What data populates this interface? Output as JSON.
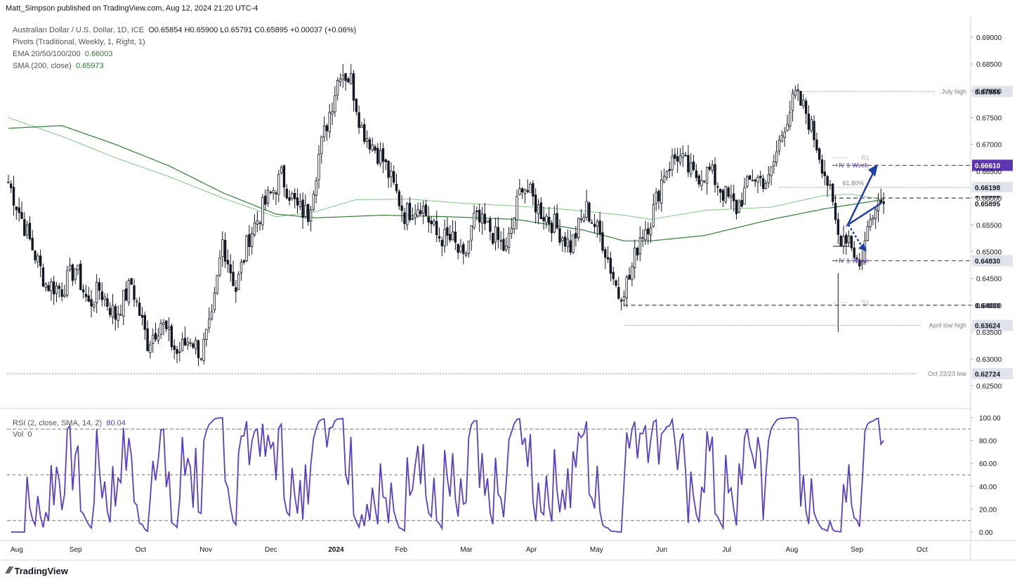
{
  "header": {
    "publisher": "Matt_Simpson published on TradingView.com, Aug 12, 2024 21:20 UTC-4"
  },
  "legend": {
    "symbol": "Australian Dollar / U.S. Dollar, 1D, ICE",
    "ohlc": "O0.65854 H0.65900 L0.65791 C0.65895 +0.00037 (+0.06%)",
    "pivots": "Pivots (Traditional, Weekly, 1, Right, 1)",
    "ema_label": "EMA 20/50/100/200",
    "ema_value": "0.66003",
    "sma_label": "SMA (200, close)",
    "sma_value": "0.65973"
  },
  "rsi_legend": {
    "label": "RSI (2, close, SMA, 14, 2)",
    "value": "80.04",
    "vol_label": "Vol",
    "vol_value": "0"
  },
  "footer": {
    "brand": "TradingView"
  },
  "colors": {
    "ema": "#2e7d32",
    "sma": "#81c784",
    "rsi": "#5b3fc4",
    "arrow": "#1e3fa8",
    "candle": "#131722",
    "pill_purple": "#5e35b1"
  },
  "chart_data": [
    {
      "type": "candlestick",
      "title": "Australian Dollar / U.S. Dollar, 1D, ICE",
      "ylim": [
        0.621,
        0.693
      ],
      "y_ticks": [
        "0.69000",
        "0.68500",
        "0.68000",
        "0.67500",
        "0.67000",
        "0.66500",
        "0.66000",
        "0.65500",
        "0.65000",
        "0.64500",
        "0.64000",
        "0.63500",
        "0.63000",
        "0.62500"
      ],
      "x_ticks": [
        "Aug",
        "Sep",
        "Oct",
        "Nov",
        "Dec",
        "2024",
        "Feb",
        "Mar",
        "Apr",
        "May",
        "Jun",
        "Jul",
        "Aug",
        "Sep",
        "Oct"
      ],
      "close_anchors": [
        [
          0,
          0.663
        ],
        [
          8,
          0.652
        ],
        [
          14,
          0.644
        ],
        [
          20,
          0.643
        ],
        [
          25,
          0.647
        ],
        [
          30,
          0.64
        ],
        [
          34,
          0.643
        ],
        [
          40,
          0.638
        ],
        [
          46,
          0.644
        ],
        [
          52,
          0.633
        ],
        [
          57,
          0.637
        ],
        [
          63,
          0.631
        ],
        [
          68,
          0.634
        ],
        [
          72,
          0.631
        ],
        [
          76,
          0.637
        ],
        [
          80,
          0.652
        ],
        [
          85,
          0.643
        ],
        [
          90,
          0.653
        ],
        [
          96,
          0.659
        ],
        [
          102,
          0.664
        ],
        [
          108,
          0.658
        ],
        [
          112,
          0.657
        ],
        [
          116,
          0.668
        ],
        [
          120,
          0.676
        ],
        [
          124,
          0.684
        ],
        [
          128,
          0.682
        ],
        [
          132,
          0.673
        ],
        [
          136,
          0.67
        ],
        [
          140,
          0.667
        ],
        [
          144,
          0.662
        ],
        [
          148,
          0.657
        ],
        [
          154,
          0.659
        ],
        [
          160,
          0.653
        ],
        [
          166,
          0.652
        ],
        [
          170,
          0.648
        ],
        [
          174,
          0.656
        ],
        [
          180,
          0.654
        ],
        [
          186,
          0.65
        ],
        [
          192,
          0.663
        ],
        [
          198,
          0.658
        ],
        [
          204,
          0.655
        ],
        [
          210,
          0.651
        ],
        [
          216,
          0.658
        ],
        [
          222,
          0.652
        ],
        [
          228,
          0.642
        ],
        [
          232,
          0.645
        ],
        [
          236,
          0.653
        ],
        [
          240,
          0.656
        ],
        [
          245,
          0.665
        ],
        [
          250,
          0.668
        ],
        [
          256,
          0.664
        ],
        [
          262,
          0.665
        ],
        [
          267,
          0.661
        ],
        [
          272,
          0.658
        ],
        [
          278,
          0.664
        ],
        [
          284,
          0.663
        ],
        [
          290,
          0.674
        ],
        [
          294,
          0.679
        ],
        [
          298,
          0.676
        ],
        [
          302,
          0.67
        ],
        [
          306,
          0.663
        ],
        [
          310,
          0.653
        ],
        [
          314,
          0.653
        ],
        [
          318,
          0.647
        ],
        [
          321,
          0.654
        ],
        [
          324,
          0.66
        ],
        [
          327,
          0.659
        ]
      ],
      "ema_200": [
        [
          0,
          0.673
        ],
        [
          20,
          0.6735
        ],
        [
          40,
          0.67
        ],
        [
          60,
          0.666
        ],
        [
          80,
          0.661
        ],
        [
          100,
          0.657
        ],
        [
          115,
          0.6563
        ],
        [
          140,
          0.6568
        ],
        [
          165,
          0.6565
        ],
        [
          190,
          0.656
        ],
        [
          215,
          0.654
        ],
        [
          230,
          0.652
        ],
        [
          240,
          0.652
        ],
        [
          260,
          0.653
        ],
        [
          285,
          0.656
        ],
        [
          305,
          0.658
        ],
        [
          327,
          0.6597
        ]
      ],
      "sma_200": [
        [
          0,
          0.675
        ],
        [
          20,
          0.6715
        ],
        [
          40,
          0.6675
        ],
        [
          60,
          0.664
        ],
        [
          80,
          0.66
        ],
        [
          100,
          0.6565
        ],
        [
          115,
          0.6575
        ],
        [
          130,
          0.6597
        ],
        [
          150,
          0.6598
        ],
        [
          170,
          0.659
        ],
        [
          190,
          0.6585
        ],
        [
          210,
          0.6578
        ],
        [
          230,
          0.6568
        ],
        [
          240,
          0.656
        ],
        [
          260,
          0.6577
        ],
        [
          285,
          0.6583
        ],
        [
          305,
          0.6605
        ],
        [
          315,
          0.6607
        ],
        [
          327,
          0.6597
        ]
      ],
      "levels": [
        {
          "label": "July high",
          "value": 0.67986,
          "price": "0.67986"
        },
        {
          "label": "+IV 1-Week",
          "value": 0.6661,
          "price": "0.66610"
        },
        {
          "label": "61.80%",
          "value": 0.66198,
          "price": "0.66198"
        },
        {
          "label": "",
          "value": 0.66,
          "price": "0.66000"
        },
        {
          "label": "",
          "value": 0.65895,
          "price": "0.65895"
        },
        {
          "label": "+IV 1-Week",
          "value": 0.6483,
          "price": "0.64830"
        },
        {
          "label": "",
          "value": 0.64,
          "price": "0.64000"
        },
        {
          "label": "April low high",
          "value": 0.63624,
          "price": "0.63624"
        },
        {
          "label": "Oct 22/23 low",
          "value": 0.62724,
          "price": "0.62724"
        }
      ],
      "pivot_labels": [
        "R1",
        "S1"
      ]
    },
    {
      "type": "line",
      "title": "RSI (2, close, SMA, 14, 2)",
      "ylim": [
        0,
        100
      ],
      "y_ticks": [
        "100.00",
        "80.00",
        "60.00",
        "40.00",
        "20.00",
        "0.00"
      ],
      "reference_lines": [
        90,
        50,
        10
      ],
      "last_value": 80.04
    }
  ]
}
